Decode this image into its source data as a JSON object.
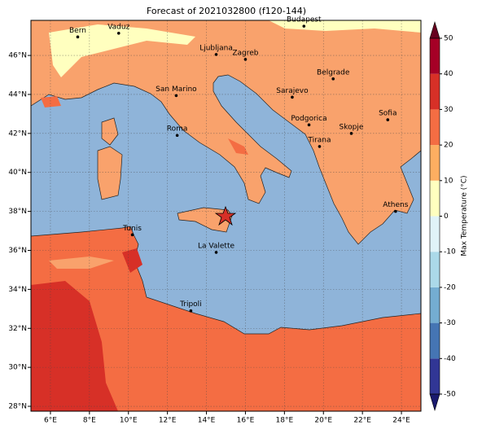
{
  "title": "Forecast of 2021032800 (f120-144)",
  "map": {
    "xlim": [
      5,
      25
    ],
    "ylim": [
      27.75,
      47.8
    ],
    "xticks": [
      {
        "value": 6,
        "label": "6°E"
      },
      {
        "value": 8,
        "label": "8°E"
      },
      {
        "value": 10,
        "label": "10°E"
      },
      {
        "value": 12,
        "label": "12°E"
      },
      {
        "value": 14,
        "label": "14°E"
      },
      {
        "value": 16,
        "label": "16°E"
      },
      {
        "value": 18,
        "label": "18°E"
      },
      {
        "value": 20,
        "label": "20°E"
      },
      {
        "value": 22,
        "label": "22°E"
      },
      {
        "value": 24,
        "label": "24°E"
      }
    ],
    "yticks": [
      {
        "value": 28,
        "label": "28°N"
      },
      {
        "value": 30,
        "label": "30°N"
      },
      {
        "value": 32,
        "label": "32°N"
      },
      {
        "value": 34,
        "label": "34°N"
      },
      {
        "value": 36,
        "label": "36°N"
      },
      {
        "value": 38,
        "label": "38°N"
      },
      {
        "value": 40,
        "label": "40°N"
      },
      {
        "value": 42,
        "label": "42°N"
      },
      {
        "value": 44,
        "label": "44°N"
      },
      {
        "value": 46,
        "label": "46°N"
      }
    ],
    "grid": true
  },
  "cities": [
    {
      "name": "Bern",
      "lon": 7.4,
      "lat": 46.95
    },
    {
      "name": "Vaduz",
      "lon": 9.5,
      "lat": 47.14
    },
    {
      "name": "Budapest",
      "lon": 19.0,
      "lat": 47.5
    },
    {
      "name": "Ljubljana",
      "lon": 14.5,
      "lat": 46.05
    },
    {
      "name": "Zagreb",
      "lon": 16.0,
      "lat": 45.8
    },
    {
      "name": "Belgrade",
      "lon": 20.5,
      "lat": 44.8
    },
    {
      "name": "San Marino",
      "lon": 12.45,
      "lat": 43.94
    },
    {
      "name": "Sarajevo",
      "lon": 18.4,
      "lat": 43.86
    },
    {
      "name": "Sofia",
      "lon": 23.3,
      "lat": 42.7
    },
    {
      "name": "Roma",
      "lon": 12.5,
      "lat": 41.9
    },
    {
      "name": "Podgorica",
      "lon": 19.26,
      "lat": 42.44
    },
    {
      "name": "Skopje",
      "lon": 21.43,
      "lat": 42.0
    },
    {
      "name": "Tirana",
      "lon": 19.8,
      "lat": 41.33
    },
    {
      "name": "Athens",
      "lon": 23.7,
      "lat": 38.0
    },
    {
      "name": "Tunis",
      "lon": 10.2,
      "lat": 36.8
    },
    {
      "name": "La Valette",
      "lon": 14.5,
      "lat": 35.9
    },
    {
      "name": "Tripoli",
      "lon": 13.2,
      "lat": 32.9
    }
  ],
  "colorbar": {
    "label": "Max Temperature (°C)",
    "lim": [
      -50,
      50
    ],
    "ticks": [
      -50,
      -40,
      -30,
      -20,
      -10,
      0,
      10,
      20,
      30,
      40,
      50
    ],
    "colors": [
      "#313695",
      "#4575b4",
      "#74add1",
      "#abd9e9",
      "#e0f3f8",
      "#ffffbf",
      "#fdae61",
      "#f46d43",
      "#d73027",
      "#a50026"
    ],
    "under": "#1a1a6e",
    "over": "#67001f"
  }
}
